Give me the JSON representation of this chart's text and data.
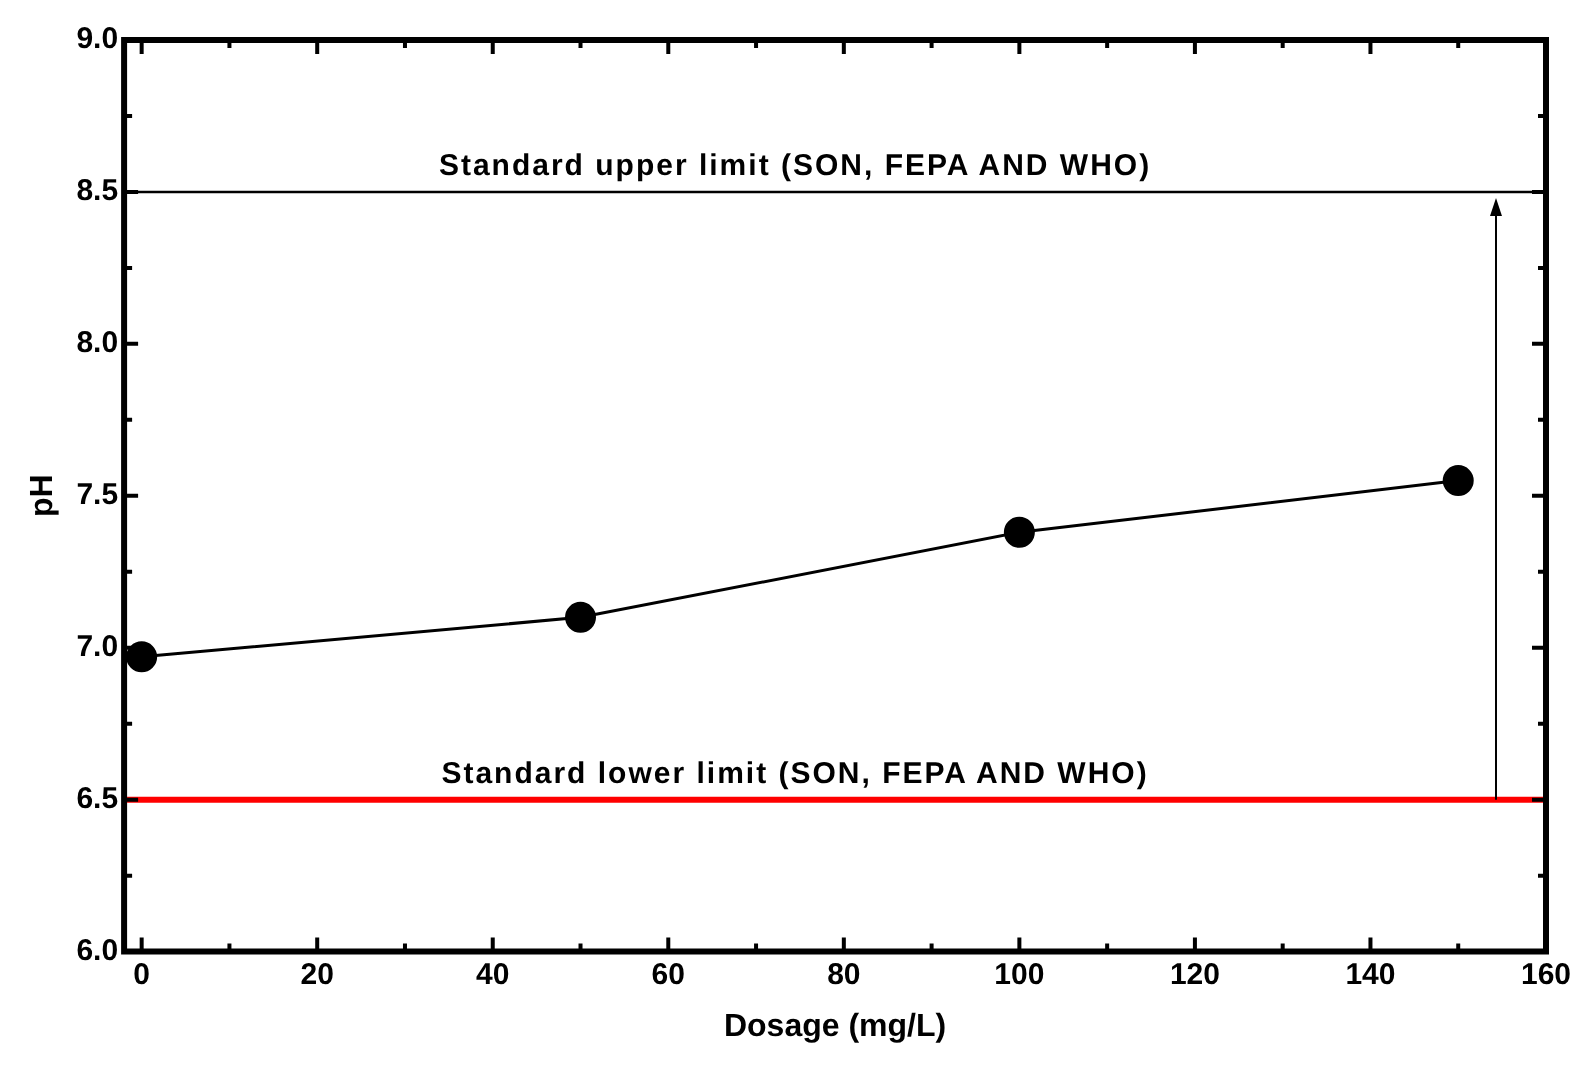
{
  "chart_data": {
    "type": "line",
    "xlabel": "Dosage (mg/L)",
    "ylabel": "pH",
    "x": [
      0,
      50,
      100,
      150
    ],
    "series": [
      {
        "color": "#000000",
        "values": [
          6.97,
          7.1,
          7.38,
          7.55
        ]
      }
    ],
    "xlim": [
      -2,
      160
    ],
    "xticks": [
      0,
      20,
      40,
      60,
      80,
      100,
      120,
      140,
      160
    ],
    "ylim": [
      6.0,
      9.0
    ],
    "yticks": [
      {
        "value": 6.0,
        "label": "6.0"
      },
      {
        "value": 6.5,
        "label": "6.5"
      },
      {
        "value": 7.0,
        "label": "7.0"
      },
      {
        "value": 7.5,
        "label": "7.5"
      },
      {
        "value": 8.0,
        "label": "8.0"
      },
      {
        "value": 8.5,
        "label": "8.5"
      },
      {
        "value": 9.0,
        "label": "9.0"
      }
    ],
    "grid": false,
    "legend": false,
    "marker": "circle",
    "line_style": "solid",
    "ref_lines": [
      {
        "axis": "y",
        "value": 8.5,
        "label": "Standard upper limit (SON, FEPA AND WHO)",
        "color": "#000000"
      },
      {
        "axis": "y",
        "value": 6.5,
        "label": "Standard lower limit (SON, FEPA AND WHO)",
        "color": "#ff0000"
      }
    ]
  }
}
